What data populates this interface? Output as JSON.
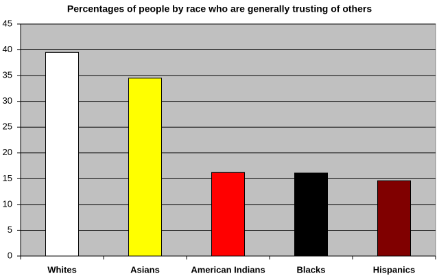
{
  "chart_data": {
    "type": "bar",
    "title": "Percentages of people by race who are generally trusting of others",
    "categories": [
      "Whites",
      "Asians",
      "American Indians",
      "Blacks",
      "Hispanics"
    ],
    "values": [
      39.5,
      34.5,
      16.2,
      16.1,
      14.6
    ],
    "colors": [
      "#ffffff",
      "#ffff00",
      "#ff0000",
      "#000000",
      "#800000"
    ],
    "ylim": [
      0,
      45
    ],
    "yticks": [
      0,
      5,
      10,
      15,
      20,
      25,
      30,
      35,
      40,
      45
    ],
    "grid": true
  }
}
